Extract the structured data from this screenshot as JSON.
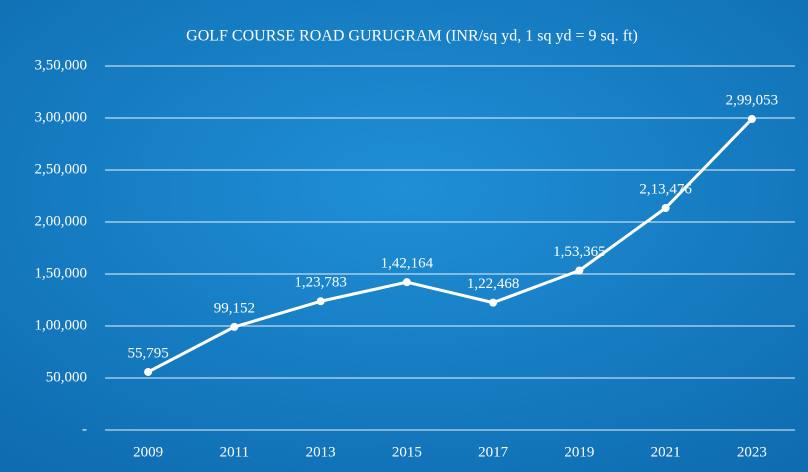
{
  "chart_data": {
    "type": "line",
    "title": "GOLF COURSE ROAD GURUGRAM (INR/sq yd, 1 sq yd = 9 sq. ft)",
    "categories": [
      "2009",
      "2011",
      "2013",
      "2015",
      "2017",
      "2019",
      "2021",
      "2023"
    ],
    "values": [
      55795,
      99152,
      123783,
      142164,
      122468,
      153365,
      213476,
      299053
    ],
    "value_labels": [
      "55,795",
      "99,152",
      "1,23,783",
      "1,42,164",
      "1,22,468",
      "1,53,365",
      "2,13,476",
      "2,99,053"
    ],
    "color": "#ffffff",
    "ylim": [
      0,
      350000
    ],
    "yticks": [
      {
        "value": 0,
        "label": "-"
      },
      {
        "value": 50000,
        "label": "50,000"
      },
      {
        "value": 100000,
        "label": "1,00,000"
      },
      {
        "value": 150000,
        "label": "1,50,000"
      },
      {
        "value": 200000,
        "label": "2,00,000"
      },
      {
        "value": 250000,
        "label": "2,50,000"
      },
      {
        "value": 300000,
        "label": "3,00,000"
      },
      {
        "value": 350000,
        "label": "3,50,000"
      }
    ],
    "grid": true
  }
}
